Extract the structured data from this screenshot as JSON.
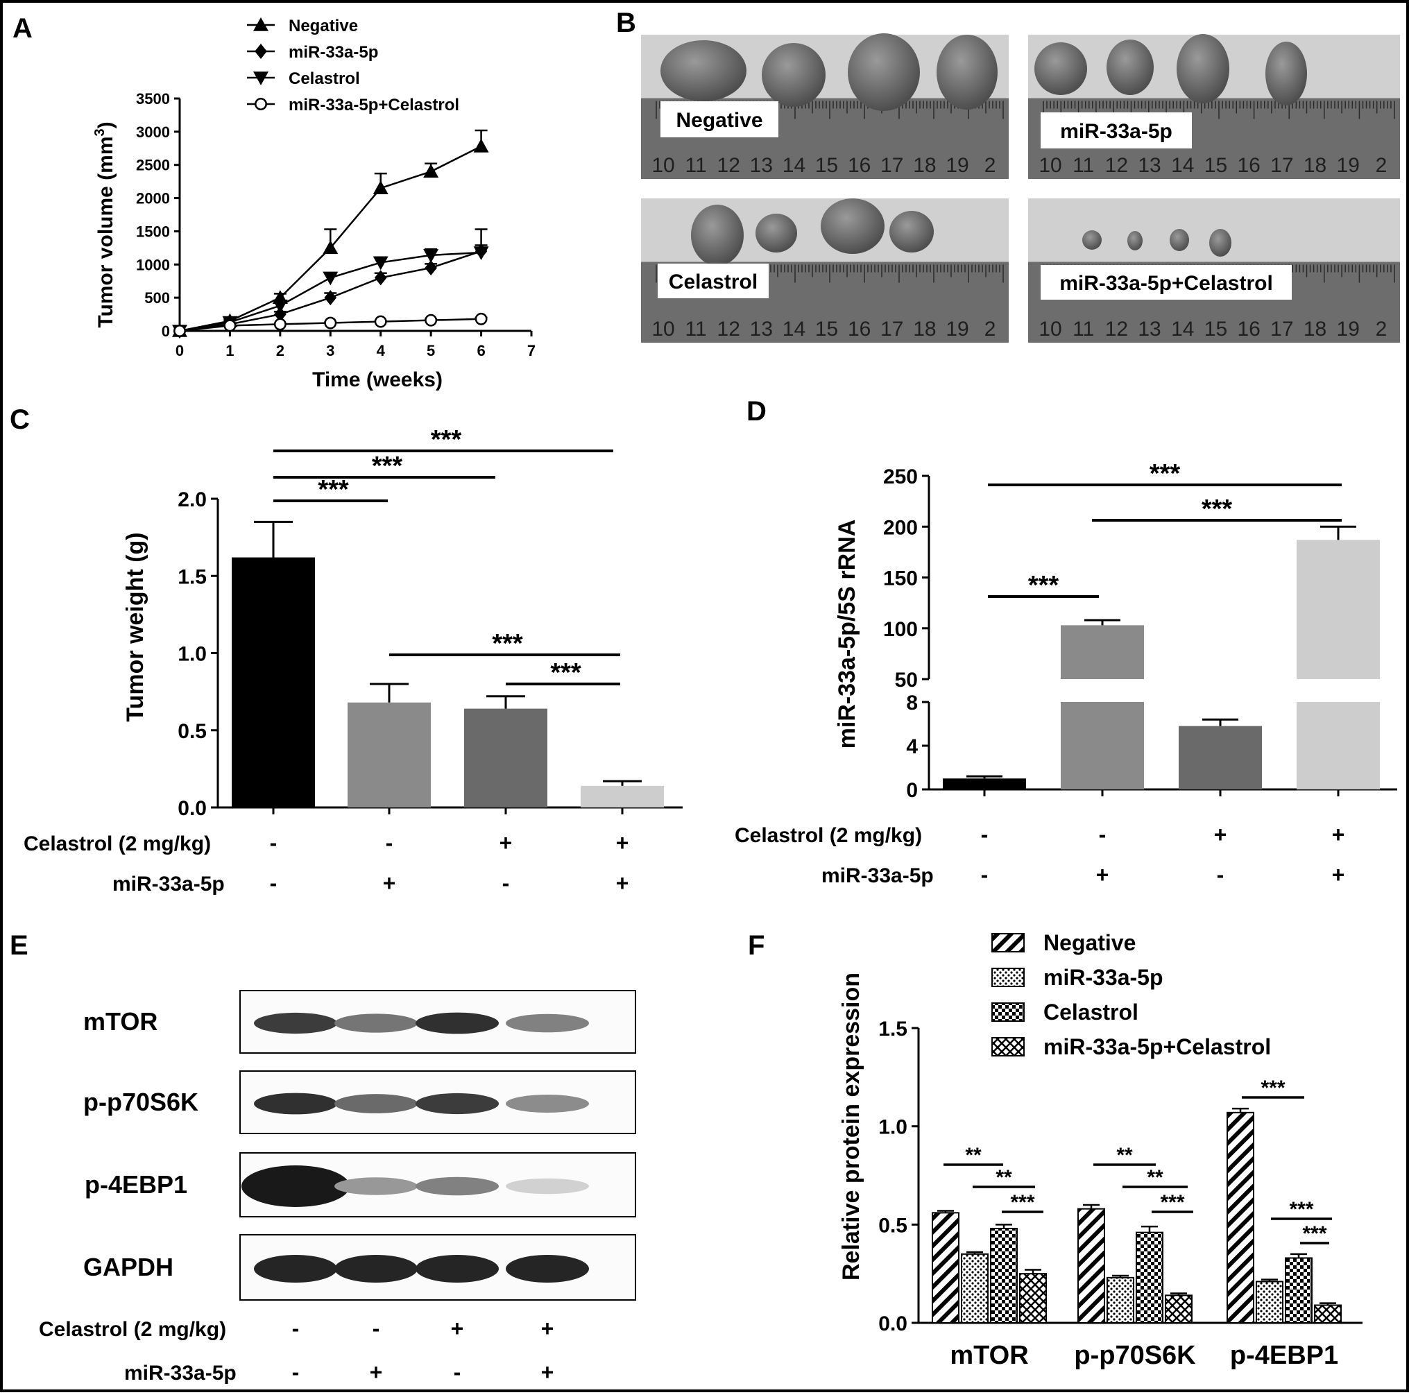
{
  "panels": {
    "a": "A",
    "b": "B",
    "c": "C",
    "d": "D",
    "e": "E",
    "f": "F"
  },
  "colors": {
    "black": "#000000",
    "gray_mid": "#8a8a8a",
    "gray_dark": "#6a6a6a",
    "gray_light": "#cdcdcd",
    "photo_bg": "#d0d0d0",
    "ruler": "#6d6d6d",
    "tumor": "#6f6f6f"
  },
  "treatments": {
    "celastrol_label": "Celastrol (2 mg/kg)",
    "mir_label": "miR-33a-5p",
    "celastrol": [
      "-",
      "-",
      "+",
      "+"
    ],
    "mir": [
      "-",
      "+",
      "-",
      "+"
    ]
  },
  "chart_data": [
    {
      "id": "A",
      "type": "line",
      "xlabel": "Time (weeks)",
      "ylabel": "Tumor volume (mm",
      "ylabel_sup": "3",
      "ylabel_end": ")",
      "xlim": [
        0,
        7
      ],
      "ylim": [
        0,
        3500
      ],
      "xticks": [
        0,
        1,
        2,
        3,
        4,
        5,
        6,
        7
      ],
      "yticks": [
        0,
        500,
        1000,
        1500,
        2000,
        2500,
        3000,
        3500
      ],
      "x": [
        0,
        1,
        2,
        3,
        4,
        5,
        6
      ],
      "series": [
        {
          "name": "Negative",
          "marker": "triangle-up",
          "values": [
            0,
            150,
            500,
            1250,
            2150,
            2400,
            2780
          ],
          "err": [
            0,
            30,
            60,
            280,
            220,
            120,
            240
          ]
        },
        {
          "name": "miR-33a-5p",
          "marker": "diamond",
          "values": [
            0,
            100,
            250,
            500,
            800,
            950,
            1200
          ],
          "err": [
            0,
            20,
            40,
            70,
            70,
            60,
            330
          ]
        },
        {
          "name": "Celastrol",
          "marker": "triangle-down",
          "values": [
            0,
            130,
            380,
            800,
            1030,
            1140,
            1180
          ],
          "err": [
            0,
            25,
            50,
            60,
            80,
            90,
            110
          ]
        },
        {
          "name": "miR-33a-5p+Celastrol",
          "marker": "circle-open",
          "values": [
            0,
            80,
            100,
            120,
            140,
            160,
            180
          ],
          "err": [
            0,
            10,
            10,
            10,
            10,
            15,
            20
          ]
        }
      ]
    },
    {
      "id": "C",
      "type": "bar",
      "ylabel": "Tumor weight (g)",
      "ylim": [
        0,
        2.0
      ],
      "yticks": [
        "0.0",
        "0.5",
        "1.0",
        "1.5",
        "2.0"
      ],
      "values": [
        1.62,
        0.68,
        0.64,
        0.14
      ],
      "err": [
        0.23,
        0.12,
        0.08,
        0.03
      ],
      "significance": [
        "***",
        "***",
        "***",
        "***",
        "***"
      ]
    },
    {
      "id": "D",
      "type": "bar",
      "ylabel": "miR-33a-5p/5S rRNA",
      "ylim_lower": [
        0,
        8
      ],
      "ylim_upper": [
        50,
        250
      ],
      "yticks_lower": [
        "0",
        "4",
        "8"
      ],
      "yticks_upper": [
        "50",
        "100",
        "150",
        "200",
        "250"
      ],
      "values": [
        1,
        103,
        5.8,
        187
      ],
      "err": [
        0.2,
        5,
        0.6,
        13
      ],
      "significance": [
        "***",
        "***",
        "***"
      ]
    },
    {
      "id": "F",
      "type": "bar",
      "ylabel": "Relative protein expression",
      "ylim": [
        0,
        1.5
      ],
      "yticks": [
        "0.0",
        "0.5",
        "1.0",
        "1.5"
      ],
      "categories": [
        "mTOR",
        "p-p70S6K",
        "p-4EBP1"
      ],
      "series": [
        {
          "name": "Negative",
          "pattern": "diagonal",
          "values": [
            0.56,
            0.58,
            1.07
          ],
          "err": [
            0.01,
            0.02,
            0.02
          ]
        },
        {
          "name": "miR-33a-5p",
          "pattern": "dots",
          "values": [
            0.35,
            0.23,
            0.21
          ],
          "err": [
            0.01,
            0.01,
            0.01
          ]
        },
        {
          "name": "Celastrol",
          "pattern": "checker",
          "values": [
            0.48,
            0.46,
            0.33
          ],
          "err": [
            0.02,
            0.03,
            0.02
          ]
        },
        {
          "name": "miR-33a-5p+Celastrol",
          "pattern": "crosshatch",
          "values": [
            0.25,
            0.14,
            0.09
          ],
          "err": [
            0.02,
            0.01,
            0.01
          ]
        }
      ],
      "significance": {
        "mTOR": [
          "**",
          "**",
          "***"
        ],
        "p-p70S6K": [
          "**",
          "**",
          "***"
        ],
        "p-4EBP1": [
          "***",
          "***",
          "***"
        ]
      }
    }
  ],
  "photo_panel": {
    "labels": [
      "Negative",
      "miR-33a-5p",
      "Celastrol",
      "miR-33a-5p+Celastrol"
    ],
    "ruler_numbers": [
      "10",
      "11",
      "12",
      "13",
      "14",
      "15",
      "16",
      "17",
      "18",
      "19",
      "2"
    ]
  },
  "blot_panel": {
    "rows": [
      "mTOR",
      "p-p70S6K",
      "p-4EBP1",
      "GAPDH"
    ],
    "intensity": [
      [
        0.85,
        0.6,
        0.9,
        0.55
      ],
      [
        0.9,
        0.65,
        0.85,
        0.5
      ],
      [
        1.0,
        0.45,
        0.55,
        0.2
      ],
      [
        0.95,
        0.95,
        0.95,
        0.95
      ]
    ]
  }
}
